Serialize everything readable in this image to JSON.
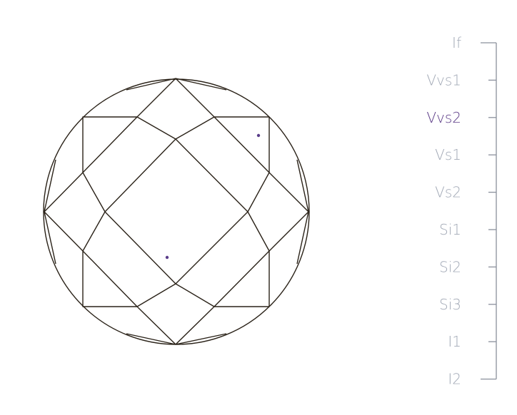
{
  "diamond": {
    "facet_color": "#2a2218",
    "inclusion_color": "#5a3d8a",
    "inclusion_count": 2
  },
  "clarity_scale": {
    "grades": [
      "If",
      "Vvs1",
      "Vvs2",
      "Vs1",
      "Vs2",
      "Si1",
      "Si2",
      "Si3",
      "I1",
      "I2"
    ],
    "selected": "Vvs2",
    "label_color": "#a2a9b6",
    "selected_color": "#5b3a86",
    "bracket_color": "#8a909c"
  }
}
